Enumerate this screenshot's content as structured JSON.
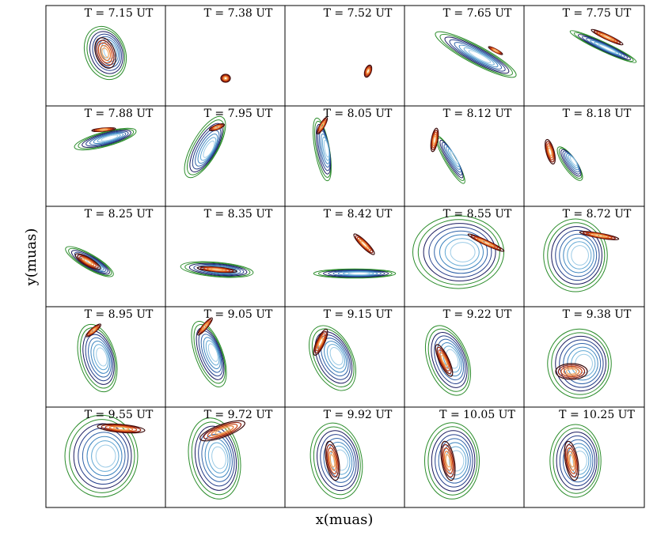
{
  "panels": [
    {
      "title": "T = 7.15 UT"
    },
    {
      "title": "T = 7.38 UT"
    },
    {
      "title": "T = 7.52 UT"
    },
    {
      "title": "T = 7.65 UT"
    },
    {
      "title": "T = 7.75 UT"
    },
    {
      "title": "T = 7.88 UT"
    },
    {
      "title": "T = 7.95 UT"
    },
    {
      "title": "T = 8.05 UT"
    },
    {
      "title": "T = 8.12 UT"
    },
    {
      "title": "T = 8.18 UT"
    },
    {
      "title": "T = 8.25 UT"
    },
    {
      "title": "T = 8.35 UT"
    },
    {
      "title": "T = 8.42 UT"
    },
    {
      "title": "T = 8.55 UT"
    },
    {
      "title": "T = 8.72 UT"
    },
    {
      "title": "T = 8.95 UT"
    },
    {
      "title": "T = 9.05 UT"
    },
    {
      "title": "T = 9.15 UT"
    },
    {
      "title": "T = 9.22 UT"
    },
    {
      "title": "T = 9.38 UT"
    },
    {
      "title": "T = 9.55 UT"
    },
    {
      "title": "T = 9.72 UT"
    },
    {
      "title": "T = 9.92 UT"
    },
    {
      "title": "T = 10.05 UT"
    },
    {
      "title": "T = 10.25 UT"
    }
  ],
  "x_label": "x(muas)",
  "y_label": "y(muas)"
}
